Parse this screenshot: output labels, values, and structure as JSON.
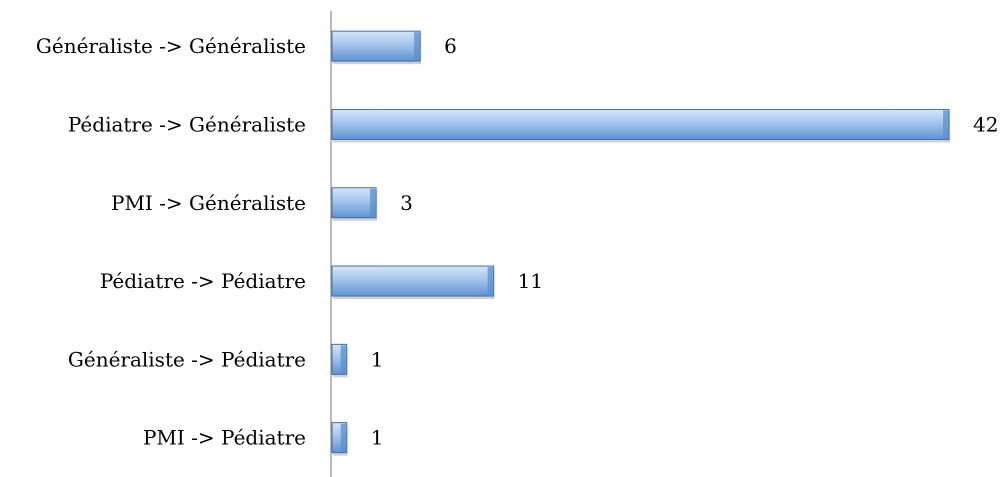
{
  "chart_data": {
    "type": "bar",
    "orientation": "horizontal",
    "categories": [
      "Généraliste -> Généraliste",
      "Pédiatre -> Généraliste",
      "PMI -> Généraliste",
      "Pédiatre -> Pédiatre",
      "Généraliste -> Pédiatre",
      "PMI -> Pédiatre"
    ],
    "values": [
      6,
      42,
      3,
      11,
      1,
      1
    ],
    "xlim": [
      0,
      42
    ],
    "grid": false,
    "legend": "none",
    "colors": {
      "bar_light": "#c7dcf4",
      "bar_mid": "#8fb7e6",
      "bar_dark": "#5b8fce",
      "bar_stroke": "#3f6fae",
      "axis": "#8c8c8c"
    }
  }
}
